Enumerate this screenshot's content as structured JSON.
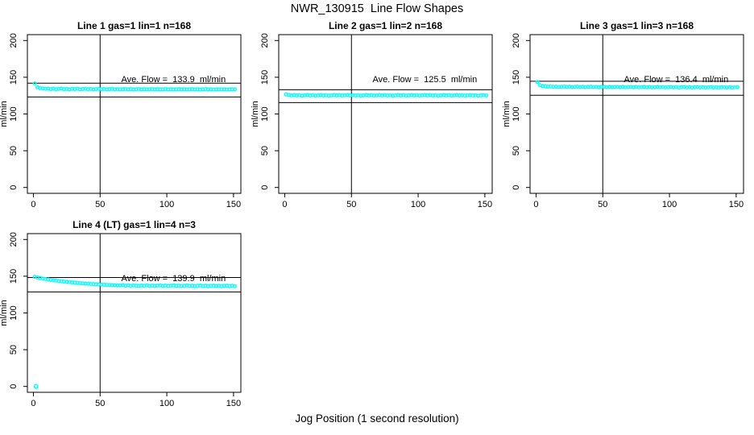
{
  "figure": {
    "title": "NWR_130915  Line Flow Shapes",
    "xlabel": "Jog Position (1 second resolution)",
    "background": "#ffffff",
    "axis_color": "#000000",
    "point_color": "#00ffff"
  },
  "chart_data": {
    "type": "scatter",
    "title": "NWR_130915  Line Flow Shapes",
    "xlabel": "Jog Position (1 second resolution)",
    "ylabel": "ml/min",
    "xlim": [
      -4.5,
      155.5
    ],
    "ylim": [
      -8,
      208
    ],
    "x_ticks": [
      0,
      50,
      100,
      150
    ],
    "y_ticks": [
      0,
      50,
      100,
      150,
      200
    ],
    "vline_x": 50,
    "grid": false,
    "legend": "none",
    "point_color": "#00ffff",
    "panels": [
      {
        "title": "Line 1 gas=1 lin=1 n=168",
        "n": 168,
        "ave_flow": 133.9,
        "ave_label": "Ave. Flow =  133.9  ml/min",
        "upper_line": 142.0,
        "lower_line": 123.2,
        "x_start": 1,
        "x_step": 2,
        "y": [
          141.5,
          136.4,
          135.1,
          134.7,
          134.3,
          134.6,
          133.9,
          134.4,
          133.7,
          134.2,
          134.5,
          133.8,
          134.1,
          133.5,
          134.3,
          133.9,
          134.4,
          133.6,
          134.0,
          134.3,
          133.7,
          134.1,
          133.5,
          133.9,
          134.2,
          133.6,
          134.0,
          133.4,
          133.8,
          134.1,
          133.6,
          133.9,
          133.4,
          133.8,
          134.0,
          133.5,
          133.9,
          133.3,
          133.7,
          134.0,
          133.5,
          133.8,
          133.4,
          133.7,
          133.9,
          133.4,
          133.8,
          133.3,
          133.6,
          133.9,
          133.5,
          133.8,
          133.3,
          133.6,
          133.8,
          133.4,
          133.7,
          133.3,
          133.6,
          133.8,
          133.4,
          133.7,
          133.2,
          133.5,
          133.8,
          133.4,
          133.6,
          133.2,
          133.5,
          133.7,
          133.3,
          133.6,
          133.2,
          133.5,
          133.7,
          133.4
        ],
        "extra_points": []
      },
      {
        "title": "Line 2 gas=1 lin=2 n=168",
        "n": 168,
        "ave_flow": 125.5,
        "ave_label": "Ave. Flow =  125.5  ml/min",
        "upper_line": 133.0,
        "lower_line": 115.5,
        "x_start": 1,
        "x_step": 2,
        "y": [
          126.6,
          125.9,
          125.3,
          125.7,
          125.2,
          125.6,
          125.0,
          125.5,
          125.8,
          125.2,
          125.6,
          125.1,
          125.4,
          125.7,
          125.2,
          125.5,
          125.0,
          125.4,
          125.7,
          125.3,
          125.6,
          125.1,
          125.5,
          125.8,
          125.3,
          125.6,
          125.2,
          125.5,
          125.0,
          125.4,
          125.7,
          125.3,
          125.6,
          125.1,
          125.4,
          125.8,
          125.3,
          125.6,
          125.2,
          125.5,
          125.0,
          125.4,
          125.7,
          125.2,
          125.6,
          125.1,
          125.4,
          125.7,
          125.3,
          125.6,
          125.1,
          125.5,
          125.8,
          125.3,
          125.6,
          125.2,
          125.5,
          125.0,
          125.4,
          125.7,
          125.3,
          125.6,
          125.1,
          125.4,
          125.7,
          125.2,
          125.5,
          125.1,
          125.4,
          125.6,
          125.2,
          125.5,
          125.0,
          125.3,
          125.6,
          125.2
        ],
        "extra_points": []
      },
      {
        "title": "Line 3 gas=1 lin=3 n=168",
        "n": 168,
        "ave_flow": 136.4,
        "ave_label": "Ave. Flow =  136.4  ml/min",
        "upper_line": 144.6,
        "lower_line": 125.5,
        "x_start": 1,
        "x_step": 2,
        "y": [
          143.5,
          139.2,
          137.9,
          137.5,
          137.2,
          137.4,
          136.9,
          137.2,
          136.7,
          137.0,
          137.3,
          136.8,
          137.1,
          136.6,
          136.9,
          137.2,
          136.7,
          137.0,
          136.5,
          136.8,
          137.1,
          136.6,
          136.9,
          136.4,
          136.8,
          137.0,
          136.5,
          136.8,
          136.4,
          136.7,
          136.9,
          136.5,
          136.8,
          136.3,
          136.6,
          136.9,
          136.4,
          136.7,
          136.3,
          136.6,
          136.8,
          136.4,
          136.7,
          136.2,
          136.5,
          136.8,
          136.3,
          136.6,
          136.2,
          136.5,
          136.7,
          136.3,
          136.6,
          136.1,
          136.4,
          136.7,
          136.2,
          136.5,
          136.1,
          136.4,
          136.6,
          136.2,
          136.5,
          136.0,
          136.3,
          136.6,
          136.1,
          136.4,
          136.0,
          136.3,
          136.5,
          136.1,
          136.4,
          136.0,
          136.3,
          136.5
        ],
        "extra_points": []
      },
      {
        "title": "Line 4 (LT) gas=1 lin=4 n=3",
        "n": 3,
        "ave_flow": 139.9,
        "ave_label": "Ave. Flow =  139.9  ml/min",
        "upper_line": 148.3,
        "lower_line": 128.7,
        "x_start": 1,
        "x_step": 2,
        "y": [
          149.2,
          148.3,
          147.5,
          146.8,
          146.2,
          145.6,
          145.0,
          144.5,
          144.0,
          143.5,
          143.1,
          142.7,
          142.3,
          141.9,
          141.6,
          141.2,
          140.9,
          140.6,
          140.3,
          140.0,
          139.8,
          139.5,
          139.3,
          139.0,
          138.8,
          138.6,
          138.4,
          138.2,
          138.1,
          137.9,
          137.7,
          137.6,
          137.4,
          137.9,
          137.1,
          137.7,
          136.9,
          137.5,
          137.2,
          136.8,
          137.4,
          137.0,
          137.6,
          136.9,
          137.3,
          136.7,
          137.2,
          137.6,
          136.8,
          137.3,
          136.6,
          137.1,
          137.5,
          136.8,
          137.2,
          136.6,
          137.0,
          137.4,
          136.7,
          137.1,
          136.5,
          137.0,
          137.3,
          136.6,
          137.1,
          136.4,
          136.9,
          137.2,
          136.5,
          137.0,
          136.4,
          136.8,
          137.1,
          136.5,
          136.9,
          136.3
        ],
        "extra_points": [
          [
            2,
            0
          ]
        ]
      }
    ]
  }
}
